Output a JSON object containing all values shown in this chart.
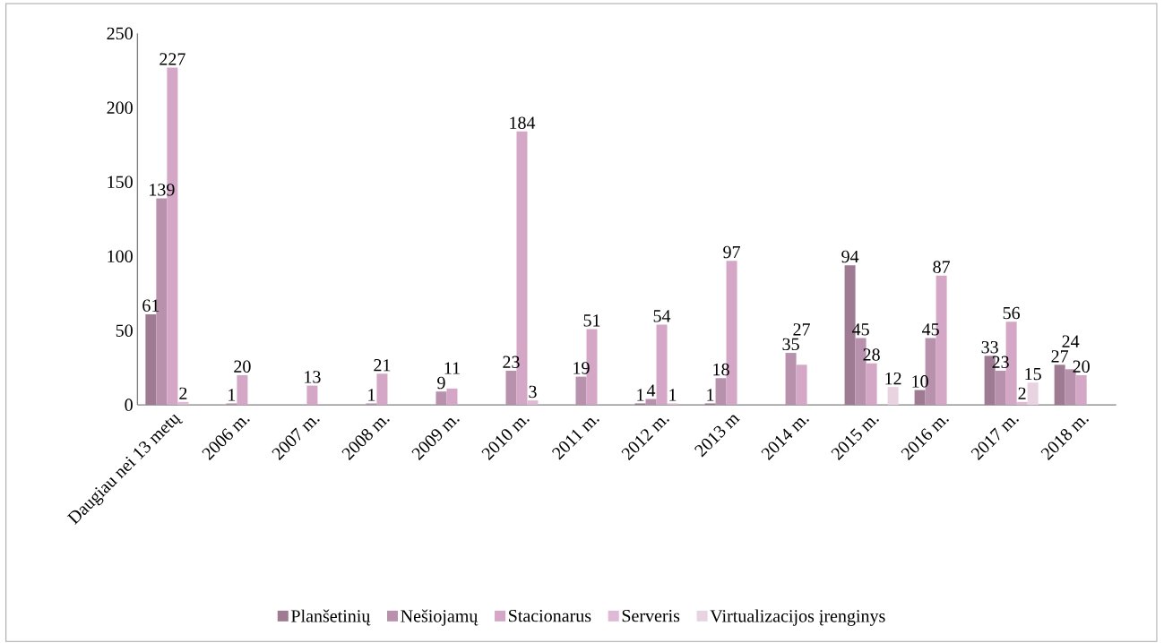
{
  "chart_data": {
    "type": "bar",
    "categories": [
      "Daugiau nei 13 metų",
      "2006 m.",
      "2007 m.",
      "2008 m.",
      "2009 m.",
      "2010 m.",
      "2011 m.",
      "2012 m.",
      "2013 m",
      "2014 m.",
      "2015 m.",
      "2016 m.",
      "2017 m.",
      "2018 m."
    ],
    "series": [
      {
        "name": "Planšetinių",
        "color": "#9e7b93",
        "values": [
          61,
          null,
          null,
          null,
          null,
          null,
          null,
          1,
          1,
          null,
          94,
          10,
          33,
          27
        ]
      },
      {
        "name": "Nešiojamų",
        "color": "#b891ad",
        "values": [
          139,
          1,
          null,
          1,
          9,
          23,
          19,
          4,
          18,
          35,
          45,
          45,
          23,
          24
        ]
      },
      {
        "name": "Stacionarus",
        "color": "#d4a7c6",
        "values": [
          227,
          20,
          13,
          21,
          11,
          184,
          51,
          54,
          97,
          27,
          28,
          87,
          56,
          20
        ]
      },
      {
        "name": "Serveris",
        "color": "#dfbad4",
        "values": [
          2,
          null,
          null,
          null,
          null,
          3,
          null,
          1,
          null,
          null,
          null,
          null,
          2,
          null
        ]
      },
      {
        "name": "Virtualizacijos įrenginys",
        "color": "#e8d3e1",
        "values": [
          null,
          null,
          null,
          null,
          null,
          null,
          null,
          null,
          null,
          null,
          12,
          null,
          15,
          null
        ]
      }
    ],
    "ylim": [
      0,
      250
    ],
    "yticks": [
      0,
      50,
      100,
      150,
      200,
      250
    ],
    "data_labels": true,
    "legend": "bottom",
    "grid": false
  }
}
